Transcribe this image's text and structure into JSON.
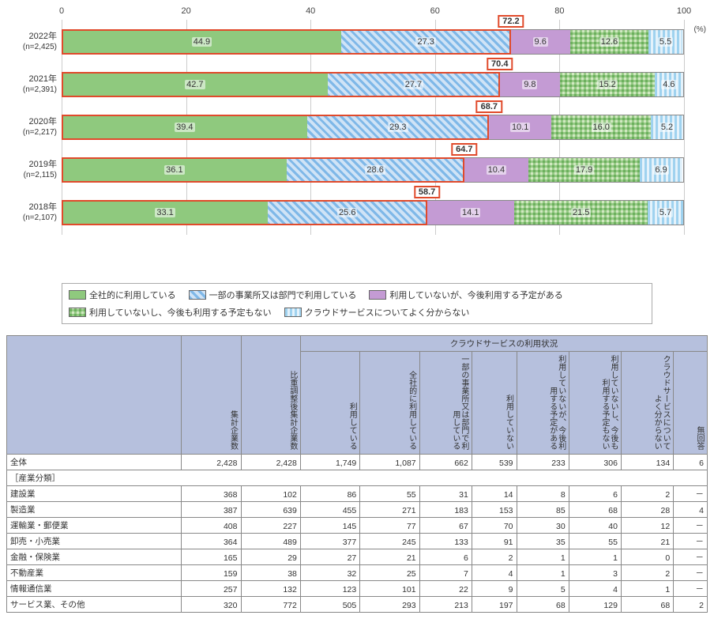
{
  "chart": {
    "type": "stacked-bar-horizontal",
    "unit": "(%)",
    "xmax": 100,
    "ticks": [
      0,
      20,
      40,
      60,
      80,
      100
    ],
    "grid_color": "#cccccc",
    "background_color": "#ffffff",
    "highlight_border": "#e04a2b",
    "series": [
      {
        "label": "全社的に利用している",
        "class_": "c0",
        "color": "#8fc97e"
      },
      {
        "label": "一部の事業所又は部門で利用している",
        "class_": "c1",
        "color": "#7fb8e8"
      },
      {
        "label": "利用していないが、今後利用する予定がある",
        "class_": "c2",
        "color": "#c49bd4"
      },
      {
        "label": "利用していないし、今後も利用する予定もない",
        "class_": "c3",
        "color": "#a6d49a"
      },
      {
        "label": "クラウドサービスについてよく分からない",
        "class_": "c4",
        "color": "#9fd2ef"
      }
    ],
    "rows": [
      {
        "year": "2022年",
        "n": "(n=2,425)",
        "values": [
          44.9,
          27.3,
          9.6,
          12.6,
          5.5
        ],
        "sum": 72.2
      },
      {
        "year": "2021年",
        "n": "(n=2,391)",
        "values": [
          42.7,
          27.7,
          9.8,
          15.2,
          4.6
        ],
        "sum": 70.4
      },
      {
        "year": "2020年",
        "n": "(n=2,217)",
        "values": [
          39.4,
          29.3,
          10.1,
          16.0,
          5.2
        ],
        "sum": 68.7
      },
      {
        "year": "2019年",
        "n": "(n=2,115)",
        "values": [
          36.1,
          28.6,
          10.4,
          17.9,
          6.9
        ],
        "sum": 64.7
      },
      {
        "year": "2018年",
        "n": "(n=2,107)",
        "values": [
          33.1,
          25.6,
          14.1,
          21.5,
          5.7
        ],
        "sum": 58.7
      }
    ]
  },
  "table": {
    "group_header": "クラウドサービスの利用状況",
    "columns": [
      "集計企業数",
      "比重調整後集計企業数",
      "利用している",
      "全社的に利用している",
      "一部の事業所又は部門で利用している",
      "利用していない",
      "利用していないが、今後利用する予定がある",
      "利用していないし、今後も利用する予定もない",
      "クラウドサービスについてよく分からない",
      "無回答"
    ],
    "total_label": "全体",
    "category_label": "［産業分類］",
    "total": [
      "2,428",
      "2,428",
      "1,749",
      "1,087",
      "662",
      "539",
      "233",
      "306",
      "134",
      "6"
    ],
    "rows": [
      {
        "label": "建設業",
        "v": [
          "368",
          "102",
          "86",
          "55",
          "31",
          "14",
          "8",
          "6",
          "2",
          "－"
        ]
      },
      {
        "label": "製造業",
        "v": [
          "387",
          "639",
          "455",
          "271",
          "183",
          "153",
          "85",
          "68",
          "28",
          "4"
        ]
      },
      {
        "label": "運輸業・郵便業",
        "v": [
          "408",
          "227",
          "145",
          "77",
          "67",
          "70",
          "30",
          "40",
          "12",
          "－"
        ]
      },
      {
        "label": "卸売・小売業",
        "v": [
          "364",
          "489",
          "377",
          "245",
          "133",
          "91",
          "35",
          "55",
          "21",
          "－"
        ]
      },
      {
        "label": "金融・保険業",
        "v": [
          "165",
          "29",
          "27",
          "21",
          "6",
          "2",
          "1",
          "1",
          "0",
          "－"
        ]
      },
      {
        "label": "不動産業",
        "v": [
          "159",
          "38",
          "32",
          "25",
          "7",
          "4",
          "1",
          "3",
          "2",
          "－"
        ]
      },
      {
        "label": "情報通信業",
        "v": [
          "257",
          "132",
          "123",
          "101",
          "22",
          "9",
          "5",
          "4",
          "1",
          "－"
        ]
      },
      {
        "label": "サービス業、その他",
        "v": [
          "320",
          "772",
          "505",
          "293",
          "213",
          "197",
          "68",
          "129",
          "68",
          "2"
        ]
      }
    ]
  }
}
